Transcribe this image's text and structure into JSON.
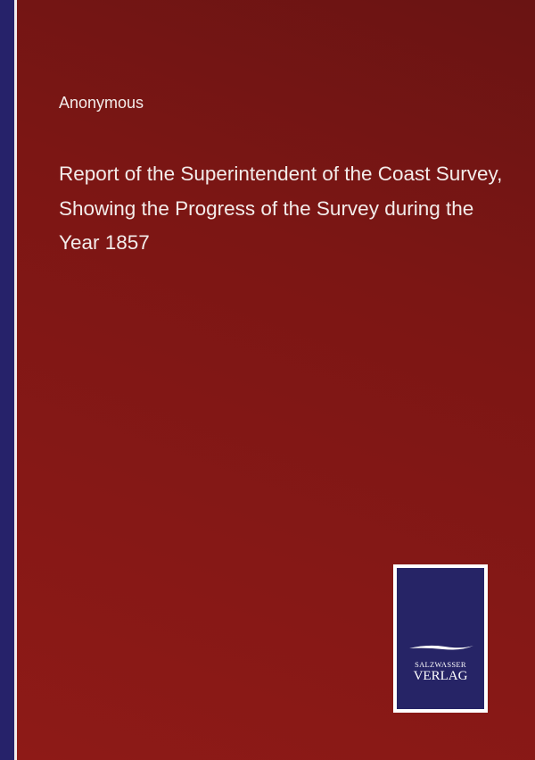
{
  "book": {
    "author": "Anonymous",
    "title": "Report of the Superintendent of the Coast Survey, Showing the Progress of the Survey during the Year 1857"
  },
  "publisher": {
    "line1": "SALZWASSER",
    "line2": "VERLAG"
  },
  "colors": {
    "cover": "#7f1715",
    "spine": "#26226a",
    "logo_bg": "#262466",
    "text": "#f3ecea"
  }
}
